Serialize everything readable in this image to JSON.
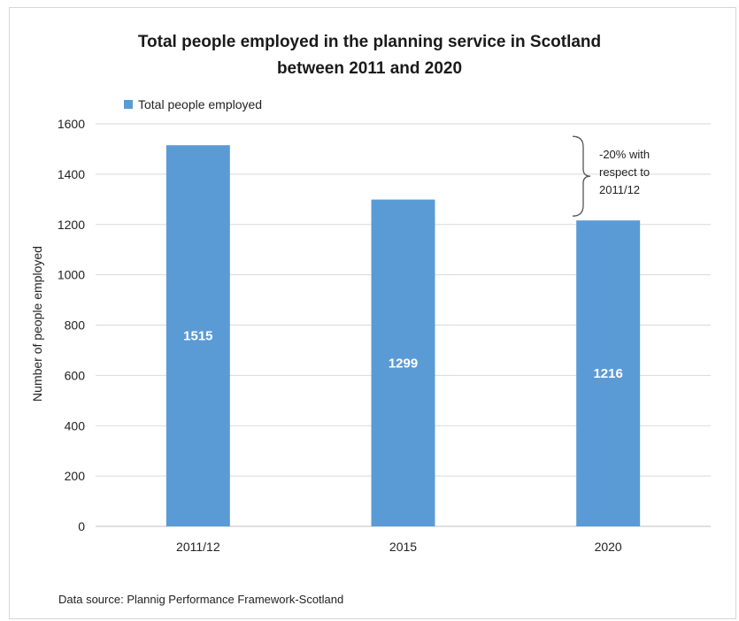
{
  "chart_data": {
    "type": "bar",
    "title_line1": "Total people employed in the planning service in Scotland",
    "title_line2": "between 2011 and 2020",
    "xlabel": "",
    "ylabel": "Number of people employed",
    "ylim": [
      0,
      1600
    ],
    "yticks": [
      0,
      200,
      400,
      600,
      800,
      1000,
      1200,
      1400,
      1600
    ],
    "categories": [
      "2011/12",
      "2015",
      "2020"
    ],
    "series": [
      {
        "name": "Total people employed",
        "values": [
          1515,
          1299,
          1216
        ]
      }
    ],
    "data_labels": [
      "1515",
      "1299",
      "1216"
    ],
    "bar_color": "#5b9bd5",
    "grid": true,
    "legend_position": "top-left",
    "annotation": {
      "lines": [
        "-20% with",
        "respect to",
        "2011/12"
      ]
    }
  },
  "source_note": "Data source: Plannig Performance Framework-Scotland"
}
